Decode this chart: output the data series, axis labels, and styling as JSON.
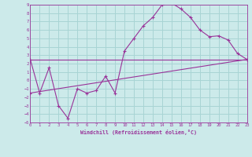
{
  "bg_color": "#cceaea",
  "grid_color": "#a8d4d4",
  "line_color": "#993399",
  "xlim": [
    0,
    23
  ],
  "ylim": [
    -5,
    9
  ],
  "xticks": [
    0,
    1,
    2,
    3,
    4,
    5,
    6,
    7,
    8,
    9,
    10,
    11,
    12,
    13,
    14,
    15,
    16,
    17,
    18,
    19,
    20,
    21,
    22,
    23
  ],
  "yticks": [
    -5,
    -4,
    -3,
    -2,
    -1,
    0,
    1,
    2,
    3,
    4,
    5,
    6,
    7,
    8,
    9
  ],
  "line1_x": [
    0,
    1,
    2,
    3,
    4,
    5,
    6,
    7,
    8,
    9,
    10,
    11,
    12,
    13,
    14,
    15,
    16,
    17,
    18,
    19,
    20,
    21,
    22,
    23
  ],
  "line1_y": [
    2.5,
    -1.5,
    1.5,
    -3.0,
    -4.5,
    -1.0,
    -1.5,
    -1.2,
    0.5,
    -1.5,
    3.5,
    5.0,
    6.5,
    7.5,
    9.0,
    9.2,
    8.5,
    7.5,
    6.0,
    5.2,
    5.3,
    4.8,
    3.2,
    2.5
  ],
  "line2_x": [
    0,
    23
  ],
  "line2_y": [
    2.5,
    2.5
  ],
  "line3_x": [
    0,
    23
  ],
  "line3_y": [
    -1.5,
    2.5
  ],
  "xlabel": "Windchill (Refroidissement éolien,°C)"
}
